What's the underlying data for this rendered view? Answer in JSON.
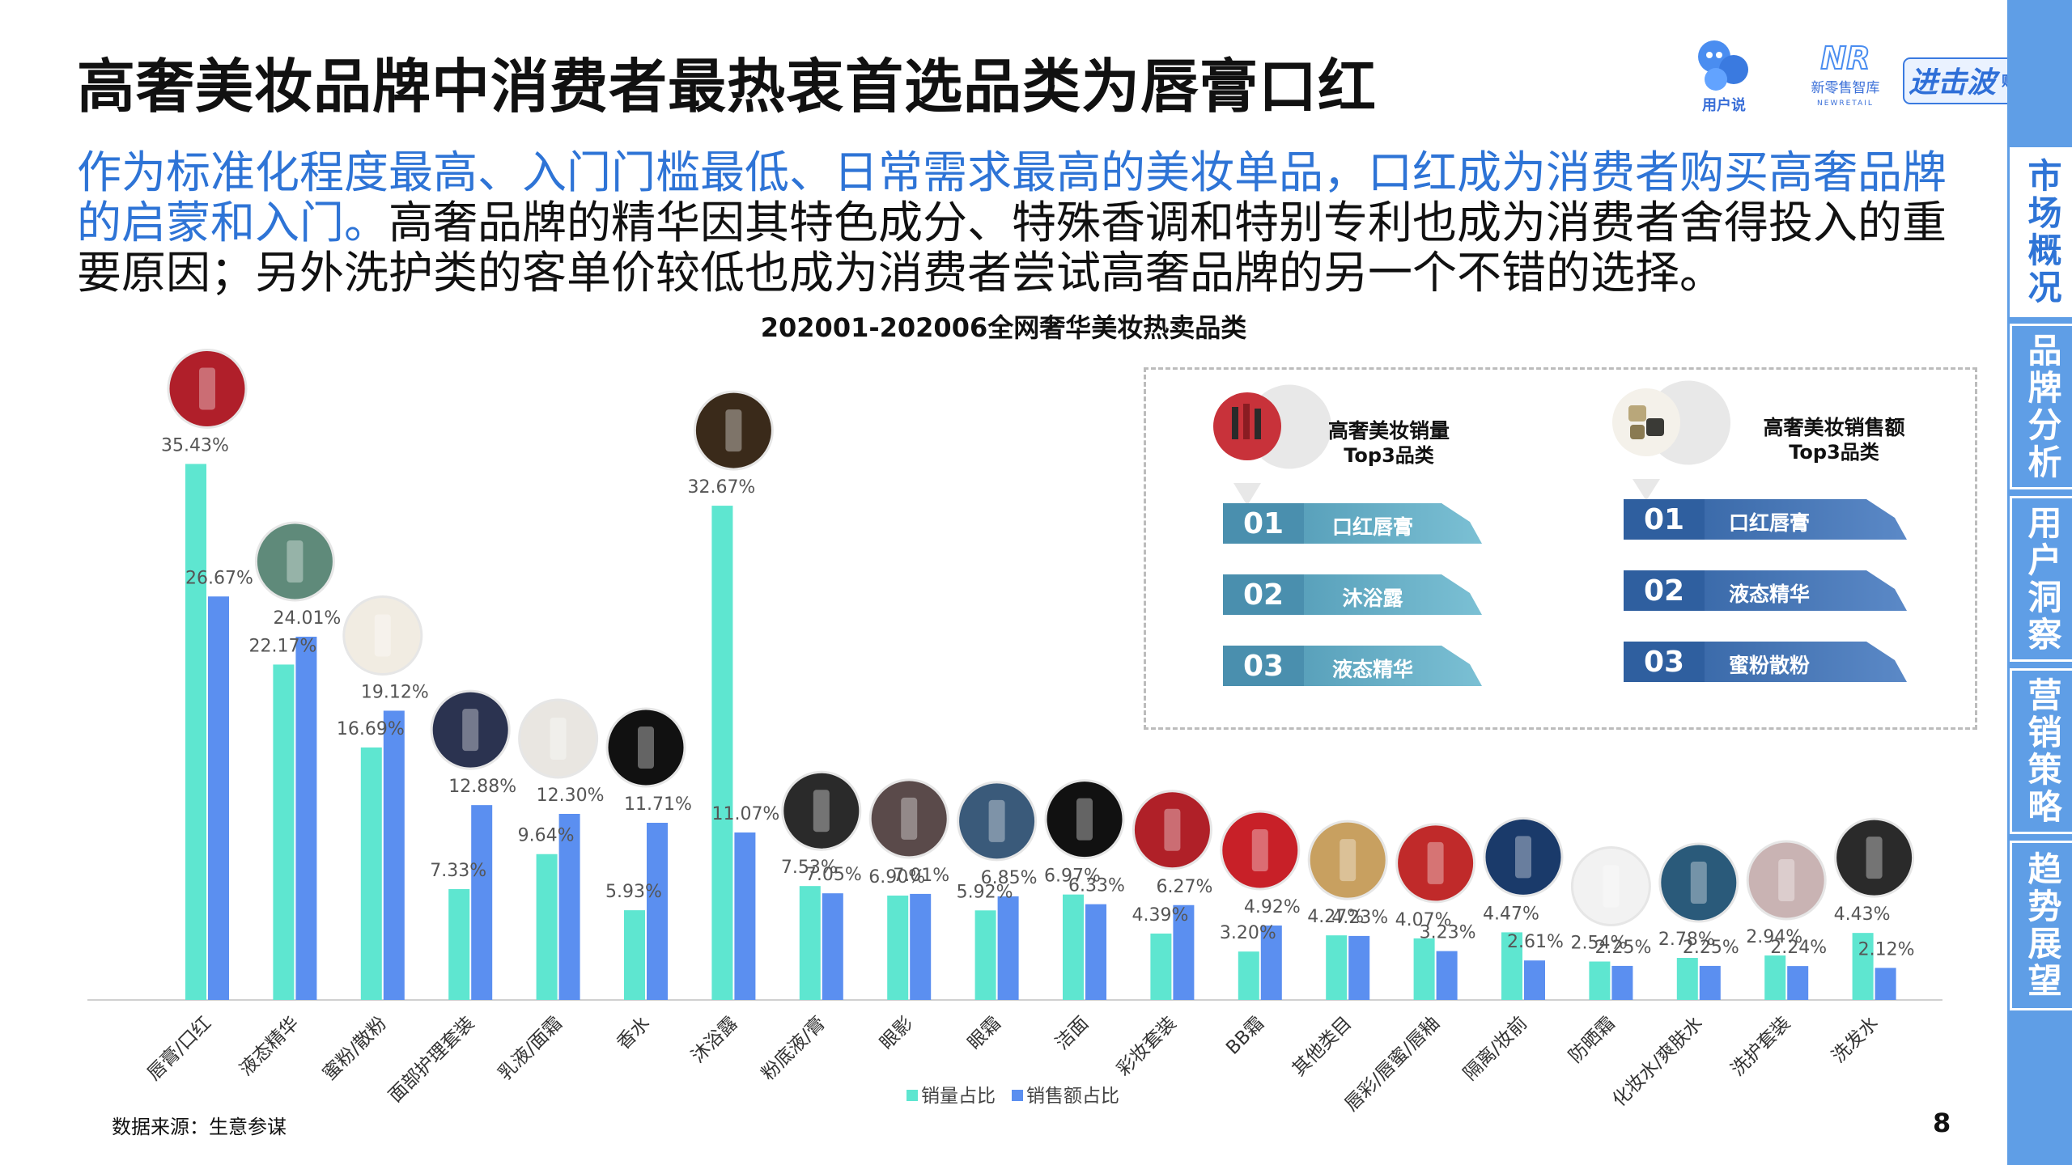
{
  "title": "高奢美妆品牌中消费者最热衷首选品类为唇膏口红",
  "subtitle_highlight": "作为标准化程度最高、入门门槛最低、日常需求最高的美妆单品，口红成为消费者购买高奢品牌的启蒙和入门。",
  "subtitle_rest": "高奢品牌的精华因其特色成分、特殊香调和特别专利也成为消费者舍得投入的重要原因；另外洗护类的客单价较低也成为消费者尝试高奢品牌的另一个不错的选择。",
  "logos": {
    "user_label": "用户说",
    "nr_label": "新零售智库",
    "nr_sub": "NEWRETAIL",
    "nr_mark": "NR",
    "js_label": "进击波",
    "js_sub": "财经"
  },
  "sidebar": [
    {
      "label": "市场概况",
      "active": true
    },
    {
      "label": "品牌分析",
      "active": false
    },
    {
      "label": "用户洞察",
      "active": false
    },
    {
      "label": "营销策略",
      "active": false
    },
    {
      "label": "趋势展望",
      "active": false
    }
  ],
  "top3": {
    "volume_title_1": "高奢美妆销量",
    "volume_title_2": "Top3品类",
    "volume_items": [
      {
        "rank": "01",
        "label": "口红唇膏"
      },
      {
        "rank": "02",
        "label": "沐浴露"
      },
      {
        "rank": "03",
        "label": "液态精华"
      }
    ],
    "sales_title_1": "高奢美妆销售额",
    "sales_title_2": "Top3品类",
    "sales_items": [
      {
        "rank": "01",
        "label": "口红唇膏"
      },
      {
        "rank": "02",
        "label": "液态精华"
      },
      {
        "rank": "03",
        "label": "蜜粉散粉"
      }
    ]
  },
  "source": "数据来源：生意参谋",
  "page_number": "8",
  "colors": {
    "volume": "#5ee6d0",
    "sales": "#5b8ff0",
    "highlight": "#2e74d6",
    "sidebar": "#5f9ee6",
    "banner_volume": "#4a9fbb",
    "banner_sales": "#3a6fb2"
  },
  "chart_data": {
    "type": "bar",
    "title": "202001-202006全网奢华美妆热卖品类",
    "categories": [
      "唇膏/口红",
      "液态精华",
      "蜜粉/散粉",
      "面部护理套装",
      "乳液/面霜",
      "香水",
      "沐浴露",
      "粉底液/膏",
      "眼影",
      "眼霜",
      "洁面",
      "彩妆套装",
      "BB霜",
      "其他类目",
      "唇彩/唇蜜/唇釉",
      "隔离/妆前",
      "防晒霜",
      "化妆水/爽肤水",
      "洗护套装",
      "洗发水"
    ],
    "series": [
      {
        "name": "销量占比",
        "values": [
          35.43,
          22.17,
          16.69,
          7.33,
          9.64,
          5.93,
          32.67,
          7.53,
          6.9,
          5.92,
          6.97,
          4.39,
          3.2,
          4.27,
          4.07,
          4.47,
          2.54,
          2.78,
          2.94,
          4.43
        ]
      },
      {
        "name": "销售额占比",
        "values": [
          26.67,
          24.01,
          19.12,
          12.88,
          12.3,
          11.71,
          11.07,
          7.05,
          7.01,
          6.85,
          6.33,
          6.27,
          4.92,
          4.23,
          3.23,
          2.61,
          2.25,
          2.25,
          2.24,
          2.12
        ]
      }
    ],
    "value_labels": {
      "volume": [
        "35.43%",
        "22.17%",
        "16.69%",
        "7.33%",
        "9.64%",
        "5.93%",
        "32.67%",
        "7.53%",
        "6.90%",
        "5.92%",
        "6.97%",
        "4.39%",
        "3.20%",
        "4.27%",
        "4.07%",
        "4.47%",
        "2.54%",
        "2.78%",
        "2.94%",
        "4.43%"
      ],
      "sales": [
        "26.67%",
        "24.01%",
        "19.12%",
        "12.88%",
        "12.30%",
        "11.71%",
        "11.07%",
        "7.05%",
        "7.01%",
        "6.85%",
        "6.33%",
        "6.27%",
        "4.92%",
        "4.23%",
        "3.23%",
        "2.61%",
        "2.25%",
        "2.25%",
        "2.24%",
        "2.12%"
      ]
    },
    "legend_position": "bottom",
    "grid": false
  }
}
